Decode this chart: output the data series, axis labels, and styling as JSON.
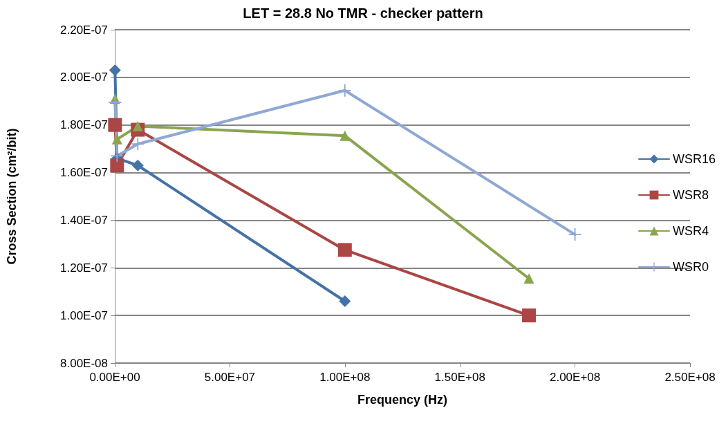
{
  "chart_data": {
    "type": "line",
    "title": "LET = 28.8 No TMR - checker pattern",
    "xlabel": "Frequency (Hz)",
    "ylabel": "Cross Section (cm²/bit)",
    "xlim": [
      0,
      250000000
    ],
    "xticks": [
      {
        "value": 0,
        "label": "0.00E+00"
      },
      {
        "value": 50000000,
        "label": "5.00E+07"
      },
      {
        "value": 100000000,
        "label": "1.00E+08"
      },
      {
        "value": 150000000,
        "label": "1.50E+08"
      },
      {
        "value": 200000000,
        "label": "2.00E+08"
      },
      {
        "value": 250000000,
        "label": "2.50E+08"
      }
    ],
    "ylim": [
      8e-08,
      2.2e-07
    ],
    "yticks": [
      {
        "value": 8e-08,
        "label": "8.00E-08"
      },
      {
        "value": 1e-07,
        "label": "1.00E-07"
      },
      {
        "value": 1.2e-07,
        "label": "1.20E-07"
      },
      {
        "value": 1.4e-07,
        "label": "1.40E-07"
      },
      {
        "value": 1.6e-07,
        "label": "1.60E-07"
      },
      {
        "value": 1.8e-07,
        "label": "1.80E-07"
      },
      {
        "value": 2e-07,
        "label": "2.00E-07"
      },
      {
        "value": 2.2e-07,
        "label": "2.20E-07"
      }
    ],
    "grid": "y",
    "legend": "right",
    "line_style": "solid",
    "series": [
      {
        "name": "WSR16",
        "color": "#4572a7",
        "marker": "diamond",
        "x": [
          100000,
          1000000,
          10000000,
          100000000
        ],
        "values": [
          2.03e-07,
          1.66e-07,
          1.63e-07,
          1.06e-07
        ]
      },
      {
        "name": "WSR8",
        "color": "#aa4643",
        "marker": "square",
        "x": [
          100000,
          1000000,
          10000000,
          100000000,
          180000000
        ],
        "values": [
          1.8e-07,
          1.63e-07,
          1.78e-07,
          1.275e-07,
          1e-07
        ]
      },
      {
        "name": "WSR4",
        "color": "#89a54e",
        "marker": "triangle",
        "x": [
          100000,
          1000000,
          10000000,
          100000000,
          180000000
        ],
        "values": [
          1.91e-07,
          1.74e-07,
          1.795e-07,
          1.755e-07,
          1.155e-07
        ]
      },
      {
        "name": "WSR0",
        "color": "#8fa8d4",
        "marker": "cross",
        "x": [
          100000,
          1000000,
          10000000,
          100000000,
          200000000
        ],
        "values": [
          1.895e-07,
          1.67e-07,
          1.72e-07,
          1.945e-07,
          1.34e-07
        ]
      }
    ]
  }
}
